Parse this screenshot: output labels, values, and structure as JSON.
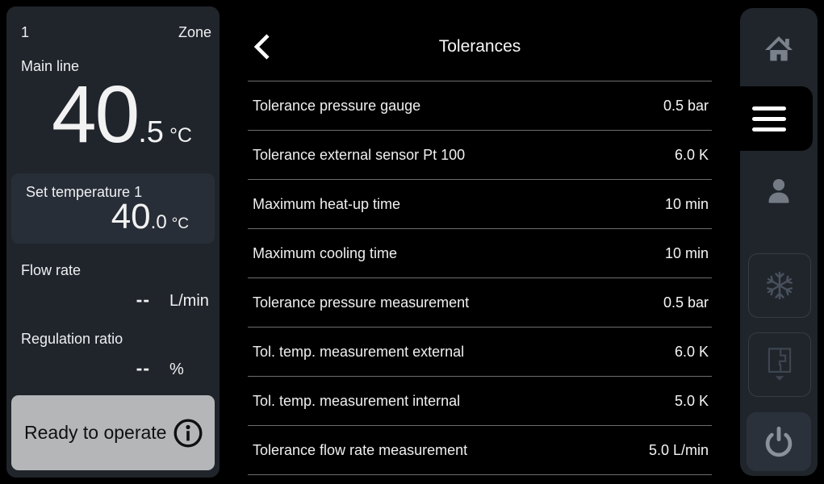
{
  "left_panel": {
    "zone_number": "1",
    "zone_label": "Zone",
    "main_line_label": "Main line",
    "main_temp": {
      "int": "40",
      "dec": ".5",
      "unit": "°C"
    },
    "set_temp": {
      "label": "Set temperature 1",
      "int": "40",
      "dec": ".0",
      "unit": "°C"
    },
    "flow": {
      "label": "Flow rate",
      "value": "--",
      "unit": "L/min"
    },
    "regulation": {
      "label": "Regulation ratio",
      "value": "--",
      "unit": "%"
    },
    "status": {
      "label": "Ready to operate",
      "icon": "info-icon"
    }
  },
  "main": {
    "back_icon": "chevron-left-icon",
    "title": "Tolerances",
    "rows": [
      {
        "label": "Tolerance pressure gauge",
        "value": "0.5 bar"
      },
      {
        "label": "Tolerance external sensor Pt 100",
        "value": "6.0 K"
      },
      {
        "label": "Maximum heat-up time",
        "value": "10 min"
      },
      {
        "label": "Maximum cooling time",
        "value": "10 min"
      },
      {
        "label": "Tolerance pressure measurement",
        "value": "0.5 bar"
      },
      {
        "label": "Tol. temp. measurement external",
        "value": "6.0 K"
      },
      {
        "label": "Tol. temp. measurement internal",
        "value": "5.0 K"
      },
      {
        "label": "Tolerance flow rate measurement",
        "value": "5.0 L/min"
      }
    ]
  },
  "sidebar": {
    "items": [
      {
        "name": "home",
        "icon": "home-icon",
        "active": false
      },
      {
        "name": "menu",
        "icon": "menu-icon",
        "active": true
      },
      {
        "name": "user",
        "icon": "user-icon",
        "active": false
      },
      {
        "name": "cooling",
        "icon": "snowflake-icon",
        "active": false
      },
      {
        "name": "mold",
        "icon": "mold-icon",
        "active": false
      },
      {
        "name": "power",
        "icon": "power-icon",
        "active": false
      }
    ]
  },
  "colors": {
    "background": "#000000",
    "panel": "#20252c",
    "panel_inset": "#282e37",
    "status_button": "#b5b6b7",
    "divider": "#6e6e6e",
    "text": "#f2f2f2",
    "icon_dim": "#7a818a",
    "active_tab": "#000000"
  }
}
